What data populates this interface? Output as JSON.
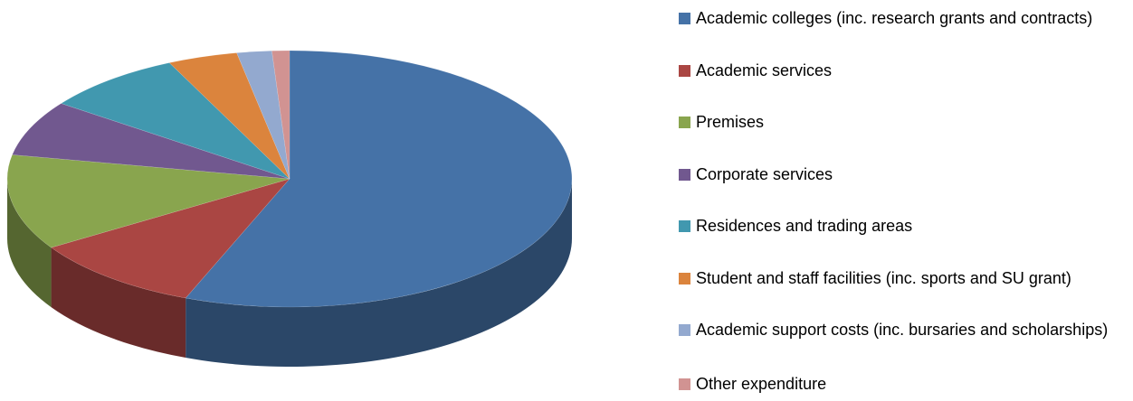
{
  "chart_data": {
    "type": "pie",
    "categories": [
      "Academic colleges (inc. research grants and contracts)",
      "Academic services",
      "Premises",
      "Corporate services",
      "Residences and trading areas",
      "Student and staff facilities (inc. sports and SU grant)",
      "Academic support costs (inc. bursaries and scholarships)",
      "Other expenditure"
    ],
    "values": [
      56,
      10,
      12,
      7,
      8,
      4,
      2,
      1
    ],
    "colors": [
      "#4572a7",
      "#aa4643",
      "#89a54e",
      "#71588f",
      "#4198af",
      "#db843d",
      "#93a9cf",
      "#d19392"
    ],
    "legend": "right"
  }
}
